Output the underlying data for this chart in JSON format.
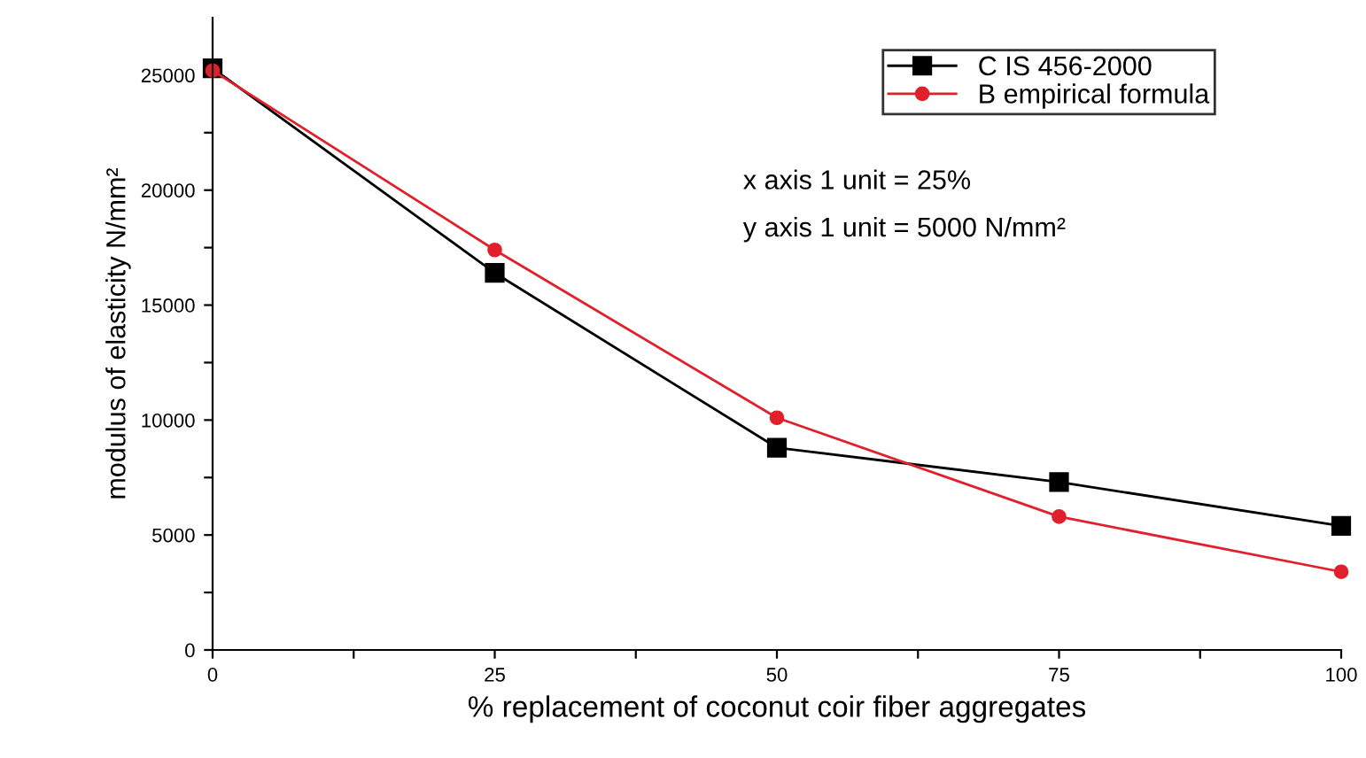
{
  "chart_data": {
    "type": "line",
    "xlabel": "% replacement of coconut coir fiber aggregates",
    "ylabel": "modulus of elasticity N/mm²",
    "x": [
      0,
      25,
      50,
      75,
      100
    ],
    "series": [
      {
        "name": "C IS 456-2000",
        "color": "#000000",
        "marker": "square",
        "values": [
          25300,
          16400,
          8800,
          7300,
          5400
        ]
      },
      {
        "name": "B empirical formula",
        "color": "#e0202a",
        "marker": "circle",
        "values": [
          25200,
          17400,
          10100,
          5800,
          3400
        ]
      }
    ],
    "annotations": [
      "x axis 1 unit = 25%",
      "y axis 1 unit = 5000 N/mm²"
    ],
    "xlim": [
      0,
      100
    ],
    "xticks": [
      0,
      {
        "value": 12.5,
        "label": null
      },
      25,
      {
        "value": 37.5,
        "label": null
      },
      50,
      {
        "value": 62.5,
        "label": null
      },
      75,
      {
        "value": 87.5,
        "label": null
      },
      100
    ],
    "ylim": [
      0,
      27500
    ],
    "yticks": [
      0,
      {
        "value": 2500,
        "label": null
      },
      5000,
      {
        "value": 7500,
        "label": null
      },
      10000,
      {
        "value": 12500,
        "label": null
      },
      15000,
      {
        "value": 17500,
        "label": null
      },
      20000,
      {
        "value": 22500,
        "label": null
      },
      25000
    ],
    "legend": "top right",
    "grid": false,
    "line_style": "solid"
  }
}
